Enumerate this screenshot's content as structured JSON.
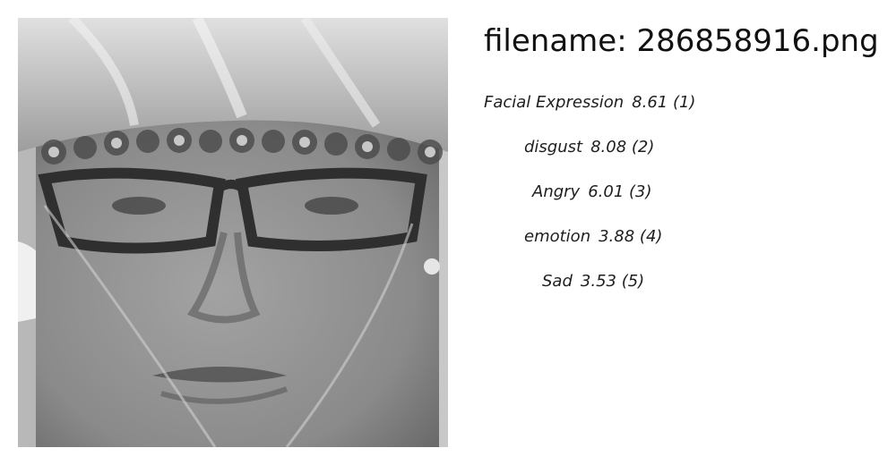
{
  "image": {
    "description_icon": "face-photo"
  },
  "header": {
    "filename": "filename: 286858916.png"
  },
  "labels": [
    {
      "name": "Facial Expression",
      "score": "8.61",
      "rank": "(1)"
    },
    {
      "name": "disgust",
      "score": "8.08",
      "rank": "(2)"
    },
    {
      "name": "Angry",
      "score": "6.01",
      "rank": "(3)"
    },
    {
      "name": "emotion",
      "score": "3.88",
      "rank": "(4)"
    },
    {
      "name": "Sad",
      "score": "3.53",
      "rank": "(5)"
    }
  ]
}
